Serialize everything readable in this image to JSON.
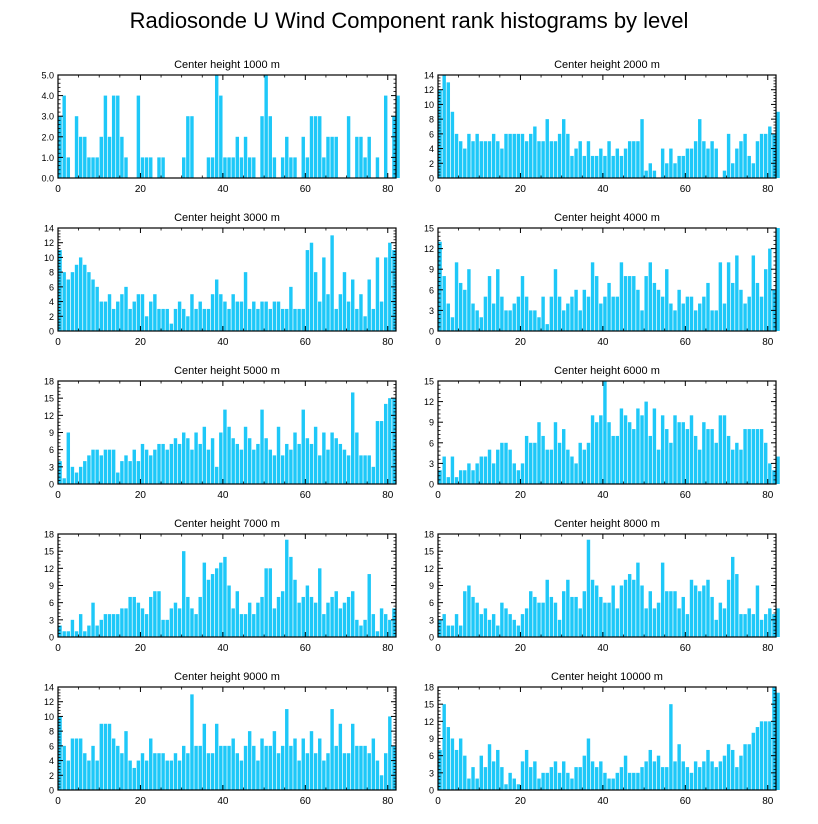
{
  "title": "Radiosonde U Wind Component rank histograms by level",
  "colors": {
    "bar_fill": "#1EC8F8",
    "axis": "#000000",
    "background": "#FFFFFF"
  },
  "chart_data": [
    {
      "type": "bar",
      "title": "Center height 1000 m",
      "xlabel": "",
      "ylabel": "",
      "xlim": [
        0,
        82
      ],
      "ylim": [
        0,
        5
      ],
      "yticks": [
        0,
        1,
        2,
        3,
        4,
        5
      ],
      "ytick_labels": [
        "0.0",
        "1.0",
        "2.0",
        "3.0",
        "4.0",
        "5.0"
      ],
      "xticks": [
        0,
        20,
        40,
        60,
        80
      ],
      "bins_start": 0,
      "values": [
        3,
        4,
        1,
        0,
        3,
        2,
        2,
        1,
        1,
        1,
        2,
        4,
        2,
        4,
        4,
        2,
        1,
        0,
        0,
        4,
        1,
        1,
        1,
        0,
        1,
        1,
        0,
        0,
        0,
        0,
        1,
        3,
        3,
        0,
        0,
        0,
        1,
        1,
        5,
        4,
        1,
        1,
        1,
        2,
        1,
        2,
        1,
        1,
        0,
        3,
        5,
        3,
        1,
        0,
        1,
        2,
        1,
        1,
        0,
        2,
        1,
        3,
        3,
        3,
        1,
        2,
        2,
        2,
        0,
        0,
        3,
        0,
        2,
        2,
        1,
        2,
        0,
        1,
        0,
        4,
        0,
        3,
        4
      ]
    },
    {
      "type": "bar",
      "title": "Center height 2000 m",
      "xlabel": "",
      "ylabel": "",
      "xlim": [
        0,
        82
      ],
      "ylim": [
        0,
        14
      ],
      "yticks": [
        0,
        2,
        4,
        6,
        8,
        10,
        12,
        14
      ],
      "ytick_labels": [
        "0",
        "2",
        "4",
        "6",
        "8",
        "10",
        "12",
        "14"
      ],
      "xticks": [
        0,
        20,
        40,
        60,
        80
      ],
      "bins_start": 0,
      "values": [
        12,
        14,
        13,
        9,
        6,
        5,
        4,
        6,
        5,
        6,
        5,
        5,
        5,
        6,
        5,
        4,
        6,
        6,
        6,
        6,
        6,
        5,
        6,
        7,
        5,
        5,
        8,
        5,
        5,
        6,
        8,
        6,
        3,
        4,
        5,
        3,
        5,
        3,
        3,
        4,
        3,
        5,
        3,
        4,
        3,
        4,
        5,
        5,
        5,
        8,
        1,
        2,
        1,
        0,
        4,
        2,
        4,
        2,
        3,
        3,
        4,
        4,
        5,
        8,
        5,
        4,
        5,
        4,
        0,
        1,
        6,
        2,
        4,
        5,
        6,
        3,
        2,
        5,
        6,
        6,
        7,
        6,
        9
      ]
    },
    {
      "type": "bar",
      "title": "Center height 3000 m",
      "xlabel": "",
      "ylabel": "",
      "xlim": [
        0,
        82
      ],
      "ylim": [
        0,
        14
      ],
      "yticks": [
        0,
        2,
        4,
        6,
        8,
        10,
        12,
        14
      ],
      "ytick_labels": [
        "0",
        "2",
        "4",
        "6",
        "8",
        "10",
        "12",
        "14"
      ],
      "xticks": [
        0,
        20,
        40,
        60,
        80
      ],
      "bins_start": 0,
      "values": [
        11,
        8,
        7,
        8,
        9,
        10,
        9,
        8,
        7,
        6,
        4,
        4,
        5,
        3,
        4,
        5,
        6,
        3,
        4,
        5,
        5,
        2,
        4,
        5,
        3,
        3,
        3,
        1,
        3,
        4,
        3,
        2,
        5,
        3,
        4,
        3,
        3,
        5,
        7,
        5,
        4,
        3,
        5,
        4,
        4,
        8,
        3,
        4,
        3,
        4,
        4,
        3,
        4,
        4,
        3,
        3,
        6,
        3,
        3,
        3,
        11,
        12,
        8,
        4,
        10,
        5,
        13,
        3,
        5,
        8,
        4,
        7,
        3,
        5,
        2,
        7,
        3,
        10,
        4,
        10,
        12,
        11
      ]
    },
    {
      "type": "bar",
      "title": "Center height 4000 m",
      "xlabel": "",
      "ylabel": "",
      "xlim": [
        0,
        82
      ],
      "ylim": [
        0,
        15
      ],
      "yticks": [
        0,
        3,
        6,
        9,
        12,
        15
      ],
      "ytick_labels": [
        "0",
        "3",
        "6",
        "9",
        "12",
        "15"
      ],
      "xticks": [
        0,
        20,
        40,
        60,
        80
      ],
      "bins_start": 0,
      "values": [
        13,
        8,
        4,
        2,
        10,
        7,
        6,
        9,
        4,
        3,
        2,
        5,
        8,
        4,
        9,
        5,
        3,
        3,
        4,
        5,
        8,
        5,
        3,
        3,
        2,
        5,
        1,
        5,
        9,
        5,
        3,
        4,
        5,
        6,
        3,
        6,
        5,
        10,
        8,
        4,
        5,
        7,
        5,
        5,
        10,
        8,
        8,
        8,
        6,
        3,
        8,
        10,
        7,
        6,
        5,
        9,
        4,
        3,
        6,
        4,
        5,
        5,
        3,
        4,
        5,
        7,
        3,
        3,
        10,
        4,
        10,
        7,
        11,
        6,
        4,
        5,
        11,
        7,
        5,
        9,
        12,
        6,
        15
      ]
    },
    {
      "type": "bar",
      "title": "Center height 5000 m",
      "xlabel": "",
      "ylabel": "",
      "xlim": [
        0,
        82
      ],
      "ylim": [
        0,
        18
      ],
      "yticks": [
        0,
        3,
        6,
        9,
        12,
        15,
        18
      ],
      "ytick_labels": [
        "0",
        "3",
        "6",
        "9",
        "12",
        "15",
        "18"
      ],
      "xticks": [
        0,
        20,
        40,
        60,
        80
      ],
      "bins_start": 0,
      "values": [
        4,
        1,
        9,
        3,
        2,
        3,
        4,
        5,
        6,
        6,
        5,
        6,
        6,
        6,
        2,
        4,
        5,
        4,
        6,
        4,
        7,
        6,
        5,
        6,
        7,
        7,
        6,
        7,
        8,
        7,
        9,
        8,
        6,
        9,
        7,
        10,
        6,
        8,
        3,
        9,
        13,
        10,
        8,
        7,
        6,
        10,
        8,
        6,
        7,
        13,
        8,
        6,
        5,
        10,
        5,
        7,
        6,
        9,
        7,
        13,
        8,
        7,
        10,
        5,
        9,
        6,
        9,
        8,
        7,
        6,
        5,
        16,
        9,
        5,
        5,
        5,
        3,
        11,
        11,
        14,
        15,
        15
      ]
    },
    {
      "type": "bar",
      "title": "Center height 6000 m",
      "xlabel": "",
      "ylabel": "",
      "xlim": [
        0,
        82
      ],
      "ylim": [
        0,
        15
      ],
      "yticks": [
        0,
        3,
        6,
        9,
        12,
        15
      ],
      "ytick_labels": [
        "0",
        "3",
        "6",
        "9",
        "12",
        "15"
      ],
      "xticks": [
        0,
        20,
        40,
        60,
        80
      ],
      "bins_start": 0,
      "values": [
        2,
        4,
        1,
        4,
        1,
        2,
        2,
        3,
        2,
        3,
        4,
        4,
        5,
        3,
        5,
        6,
        6,
        5,
        3,
        2,
        3,
        7,
        6,
        6,
        9,
        7,
        5,
        5,
        9,
        6,
        8,
        5,
        4,
        3,
        6,
        5,
        6,
        10,
        9,
        10,
        15,
        9,
        7,
        7,
        11,
        10,
        9,
        8,
        11,
        10,
        12,
        7,
        11,
        5,
        10,
        8,
        6,
        10,
        9,
        9,
        8,
        10,
        7,
        5,
        9,
        8,
        8,
        6,
        10,
        10,
        7,
        5,
        6,
        5,
        8,
        8,
        8,
        8,
        8,
        6,
        3,
        2,
        4
      ]
    },
    {
      "type": "bar",
      "title": "Center height 7000 m",
      "xlabel": "",
      "ylabel": "",
      "xlim": [
        0,
        82
      ],
      "ylim": [
        0,
        18
      ],
      "yticks": [
        0,
        3,
        6,
        9,
        12,
        15,
        18
      ],
      "ytick_labels": [
        "0",
        "3",
        "6",
        "9",
        "12",
        "15",
        "18"
      ],
      "xticks": [
        0,
        20,
        40,
        60,
        80
      ],
      "bins_start": 0,
      "values": [
        2,
        1,
        1,
        3,
        1,
        4,
        1,
        2,
        6,
        2,
        3,
        4,
        4,
        4,
        4,
        5,
        5,
        7,
        7,
        6,
        5,
        4,
        7,
        8,
        8,
        3,
        3,
        5,
        6,
        5,
        15,
        7,
        5,
        4,
        7,
        13,
        10,
        11,
        12,
        13,
        14,
        9,
        5,
        8,
        4,
        4,
        6,
        4,
        6,
        7,
        12,
        12,
        5,
        7,
        8,
        17,
        14,
        10,
        6,
        7,
        9,
        7,
        6,
        12,
        4,
        6,
        7,
        8,
        5,
        6,
        7,
        8,
        3,
        2,
        3,
        11,
        4,
        1,
        5,
        4,
        3,
        5
      ]
    },
    {
      "type": "bar",
      "title": "Center height 8000 m",
      "xlabel": "",
      "ylabel": "",
      "xlim": [
        0,
        82
      ],
      "ylim": [
        0,
        18
      ],
      "yticks": [
        0,
        3,
        6,
        9,
        12,
        15,
        18
      ],
      "ytick_labels": [
        "0",
        "3",
        "6",
        "9",
        "12",
        "15",
        "18"
      ],
      "xticks": [
        0,
        20,
        40,
        60,
        80
      ],
      "bins_start": 0,
      "values": [
        3,
        4,
        2,
        2,
        4,
        2,
        8,
        9,
        7,
        6,
        4,
        5,
        3,
        4,
        2,
        6,
        5,
        4,
        3,
        2,
        4,
        5,
        8,
        7,
        6,
        6,
        10,
        7,
        6,
        3,
        8,
        10,
        7,
        7,
        5,
        8,
        17,
        10,
        9,
        7,
        6,
        6,
        9,
        5,
        9,
        10,
        11,
        10,
        13,
        9,
        5,
        8,
        5,
        6,
        13,
        8,
        8,
        8,
        5,
        7,
        4,
        10,
        9,
        8,
        9,
        10,
        7,
        3,
        6,
        5,
        10,
        14,
        11,
        4,
        4,
        5,
        4,
        9,
        3,
        4,
        5,
        4,
        5
      ]
    },
    {
      "type": "bar",
      "title": "Center height 9000 m",
      "xlabel": "",
      "ylabel": "",
      "xlim": [
        0,
        82
      ],
      "ylim": [
        0,
        14
      ],
      "yticks": [
        0,
        2,
        4,
        6,
        8,
        10,
        12,
        14
      ],
      "ytick_labels": [
        "0",
        "2",
        "4",
        "6",
        "8",
        "10",
        "12",
        "14"
      ],
      "xticks": [
        0,
        20,
        40,
        60,
        80
      ],
      "bins_start": 0,
      "values": [
        10,
        6,
        4,
        7,
        7,
        7,
        5,
        4,
        6,
        4,
        9,
        9,
        9,
        7,
        6,
        5,
        8,
        4,
        3,
        4,
        5,
        4,
        7,
        5,
        5,
        5,
        4,
        4,
        5,
        4,
        6,
        5,
        13,
        6,
        6,
        9,
        5,
        5,
        9,
        6,
        6,
        6,
        7,
        5,
        4,
        6,
        8,
        6,
        4,
        7,
        6,
        6,
        8,
        5,
        6,
        11,
        6,
        7,
        4,
        7,
        5,
        8,
        5,
        7,
        4,
        5,
        11,
        6,
        9,
        5,
        5,
        9,
        6,
        6,
        6,
        5,
        7,
        4,
        2,
        5,
        10,
        6
      ]
    },
    {
      "type": "bar",
      "title": "Center height 10000 m",
      "xlabel": "",
      "ylabel": "",
      "xlim": [
        0,
        82
      ],
      "ylim": [
        0,
        18
      ],
      "yticks": [
        0,
        3,
        6,
        9,
        12,
        15,
        18
      ],
      "ytick_labels": [
        "0",
        "3",
        "6",
        "9",
        "12",
        "15",
        "18"
      ],
      "xticks": [
        0,
        20,
        40,
        60,
        80
      ],
      "bins_start": 0,
      "values": [
        7,
        15,
        11,
        9,
        7,
        9,
        6,
        2,
        4,
        2,
        6,
        4,
        8,
        5,
        7,
        4,
        1,
        3,
        2,
        1,
        5,
        7,
        4,
        5,
        2,
        3,
        3,
        4,
        5,
        3,
        5,
        3,
        2,
        4,
        4,
        6,
        9,
        5,
        4,
        5,
        3,
        2,
        2,
        3,
        4,
        6,
        3,
        3,
        3,
        4,
        5,
        7,
        5,
        6,
        4,
        4,
        15,
        5,
        8,
        5,
        4,
        3,
        5,
        4,
        5,
        7,
        5,
        4,
        5,
        6,
        8,
        7,
        4,
        6,
        8,
        8,
        10,
        11,
        12,
        12,
        12,
        18,
        17
      ]
    }
  ]
}
